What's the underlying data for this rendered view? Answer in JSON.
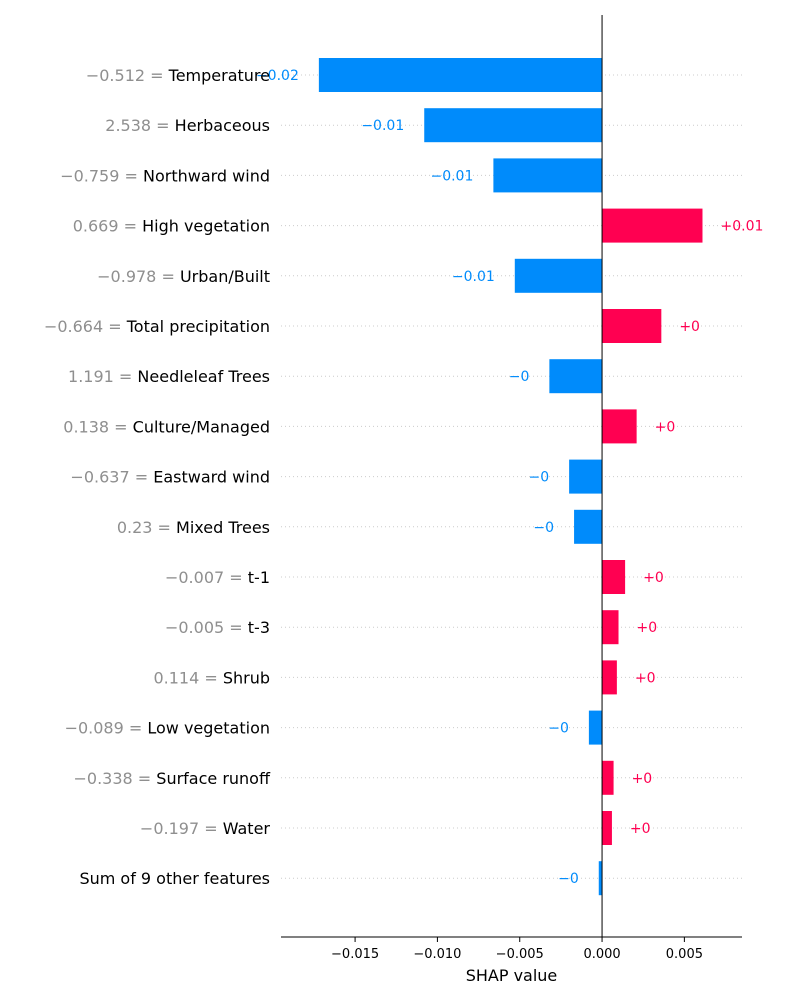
{
  "chart_data": {
    "type": "bar",
    "orientation": "horizontal",
    "xlabel": "SHAP value",
    "xlim": [
      -0.0195,
      0.0085
    ],
    "x_ticks": [
      -0.015,
      -0.01,
      -0.005,
      0.0,
      0.005
    ],
    "x_tick_labels": [
      "−0.015",
      "−0.010",
      "−0.005",
      "0.000",
      "0.005"
    ],
    "grid": "horizontal dotted",
    "colors": {
      "positive": "#ff0051",
      "negative": "#008bfb",
      "value_text": "#8f8f8f"
    },
    "rows": [
      {
        "feature_value": "−0.512",
        "feature": "Temperature",
        "shap": -0.0172,
        "label": "−0.02"
      },
      {
        "feature_value": "2.538",
        "feature": "Herbaceous",
        "shap": -0.0108,
        "label": "−0.01"
      },
      {
        "feature_value": "−0.759",
        "feature": "Northward wind",
        "shap": -0.0066,
        "label": "−0.01"
      },
      {
        "feature_value": "0.669",
        "feature": "High vegetation",
        "shap": 0.0061,
        "label": "+0.01"
      },
      {
        "feature_value": "−0.978",
        "feature": "Urban/Built",
        "shap": -0.0053,
        "label": "−0.01"
      },
      {
        "feature_value": "−0.664",
        "feature": "Total precipitation",
        "shap": 0.0036,
        "label": "+0"
      },
      {
        "feature_value": "1.191",
        "feature": "Needleleaf Trees",
        "shap": -0.0032,
        "label": "−0"
      },
      {
        "feature_value": "0.138",
        "feature": "Culture/Managed",
        "shap": 0.0021,
        "label": "+0"
      },
      {
        "feature_value": "−0.637",
        "feature": "Eastward wind",
        "shap": -0.002,
        "label": "−0"
      },
      {
        "feature_value": "0.23",
        "feature": "Mixed Trees",
        "shap": -0.0017,
        "label": "−0"
      },
      {
        "feature_value": "−0.007",
        "feature": "t-1",
        "shap": 0.0014,
        "label": "+0"
      },
      {
        "feature_value": "−0.005",
        "feature": "t-3",
        "shap": 0.001,
        "label": "+0"
      },
      {
        "feature_value": "0.114",
        "feature": "Shrub",
        "shap": 0.0009,
        "label": "+0"
      },
      {
        "feature_value": "−0.089",
        "feature": "Low vegetation",
        "shap": -0.0008,
        "label": "−0"
      },
      {
        "feature_value": "−0.338",
        "feature": "Surface runoff",
        "shap": 0.0007,
        "label": "+0"
      },
      {
        "feature_value": "−0.197",
        "feature": "Water",
        "shap": 0.0006,
        "label": "+0"
      },
      {
        "feature_value": "",
        "feature": "Sum of 9 other features",
        "shap": -0.0002,
        "label": "−0"
      }
    ]
  }
}
